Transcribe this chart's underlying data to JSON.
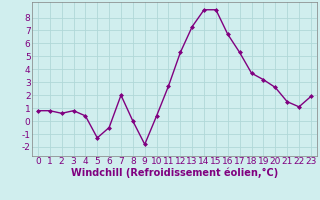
{
  "x": [
    0,
    1,
    2,
    3,
    4,
    5,
    6,
    7,
    8,
    9,
    10,
    11,
    12,
    13,
    14,
    15,
    16,
    17,
    18,
    19,
    20,
    21,
    22,
    23
  ],
  "y": [
    0.8,
    0.8,
    0.6,
    0.8,
    0.4,
    -1.3,
    -0.5,
    2.0,
    0.0,
    -1.8,
    0.4,
    2.7,
    5.3,
    7.3,
    8.6,
    8.6,
    6.7,
    5.3,
    3.7,
    3.2,
    2.6,
    1.5,
    1.1,
    1.9
  ],
  "line_color": "#800080",
  "marker": "D",
  "marker_size": 2.0,
  "line_width": 1.0,
  "xlabel": "Windchill (Refroidissement éolien,°C)",
  "xlabel_fontsize": 7,
  "xlim": [
    -0.5,
    23.5
  ],
  "ylim": [
    -2.7,
    9.2
  ],
  "yticks": [
    -2,
    -1,
    0,
    1,
    2,
    3,
    4,
    5,
    6,
    7,
    8
  ],
  "xticks": [
    0,
    1,
    2,
    3,
    4,
    5,
    6,
    7,
    8,
    9,
    10,
    11,
    12,
    13,
    14,
    15,
    16,
    17,
    18,
    19,
    20,
    21,
    22,
    23
  ],
  "background_color": "#d0eeee",
  "grid_color": "#b0d8d8",
  "tick_color": "#800080",
  "axis_color": "#808080",
  "tick_fontsize": 6.5,
  "xlabel_weight": "bold"
}
